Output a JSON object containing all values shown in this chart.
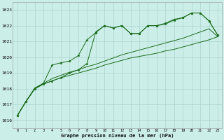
{
  "background_color": "#cceee8",
  "grid_color": "#aad4ce",
  "line_color": "#1a6b1a",
  "xlabel": "Graphe pression niveau de la mer (hPa)",
  "ylim": [
    1015.5,
    1023.5
  ],
  "xlim": [
    -0.5,
    23.5
  ],
  "yticks": [
    1016,
    1017,
    1018,
    1019,
    1020,
    1021,
    1022,
    1023
  ],
  "xticks": [
    0,
    1,
    2,
    3,
    4,
    5,
    6,
    7,
    8,
    9,
    10,
    11,
    12,
    13,
    14,
    15,
    16,
    17,
    18,
    19,
    20,
    21,
    22,
    23
  ],
  "series_with_markers": [
    [
      1016.3,
      1017.2,
      1018.0,
      1018.3,
      1018.5,
      1018.7,
      1019.0,
      1019.2,
      1019.6,
      1021.6,
      1022.0,
      1021.85,
      1022.0,
      1021.5,
      1021.5,
      1022.0,
      1022.0,
      1022.1,
      1022.35,
      1022.5,
      1022.8,
      1022.8,
      1022.3,
      1021.4
    ],
    [
      1016.3,
      1017.2,
      1018.0,
      1018.35,
      1019.5,
      1019.65,
      1019.75,
      1020.1,
      1021.1,
      1021.55,
      1022.0,
      1021.85,
      1022.0,
      1021.5,
      1021.5,
      1022.0,
      1022.0,
      1022.15,
      1022.4,
      1022.5,
      1022.8,
      1022.8,
      1022.3,
      1021.4
    ]
  ],
  "series_plain": [
    [
      1016.3,
      1017.2,
      1018.0,
      1018.3,
      1018.5,
      1018.7,
      1018.85,
      1019.0,
      1019.15,
      1019.3,
      1019.5,
      1019.65,
      1019.8,
      1019.95,
      1020.05,
      1020.15,
      1020.25,
      1020.4,
      1020.5,
      1020.65,
      1020.8,
      1020.95,
      1021.1,
      1021.3
    ],
    [
      1016.3,
      1017.2,
      1018.05,
      1018.35,
      1018.65,
      1018.85,
      1019.05,
      1019.2,
      1019.4,
      1019.55,
      1019.75,
      1019.95,
      1020.15,
      1020.3,
      1020.45,
      1020.6,
      1020.75,
      1020.9,
      1021.05,
      1021.2,
      1021.4,
      1021.6,
      1021.8,
      1021.3
    ]
  ]
}
